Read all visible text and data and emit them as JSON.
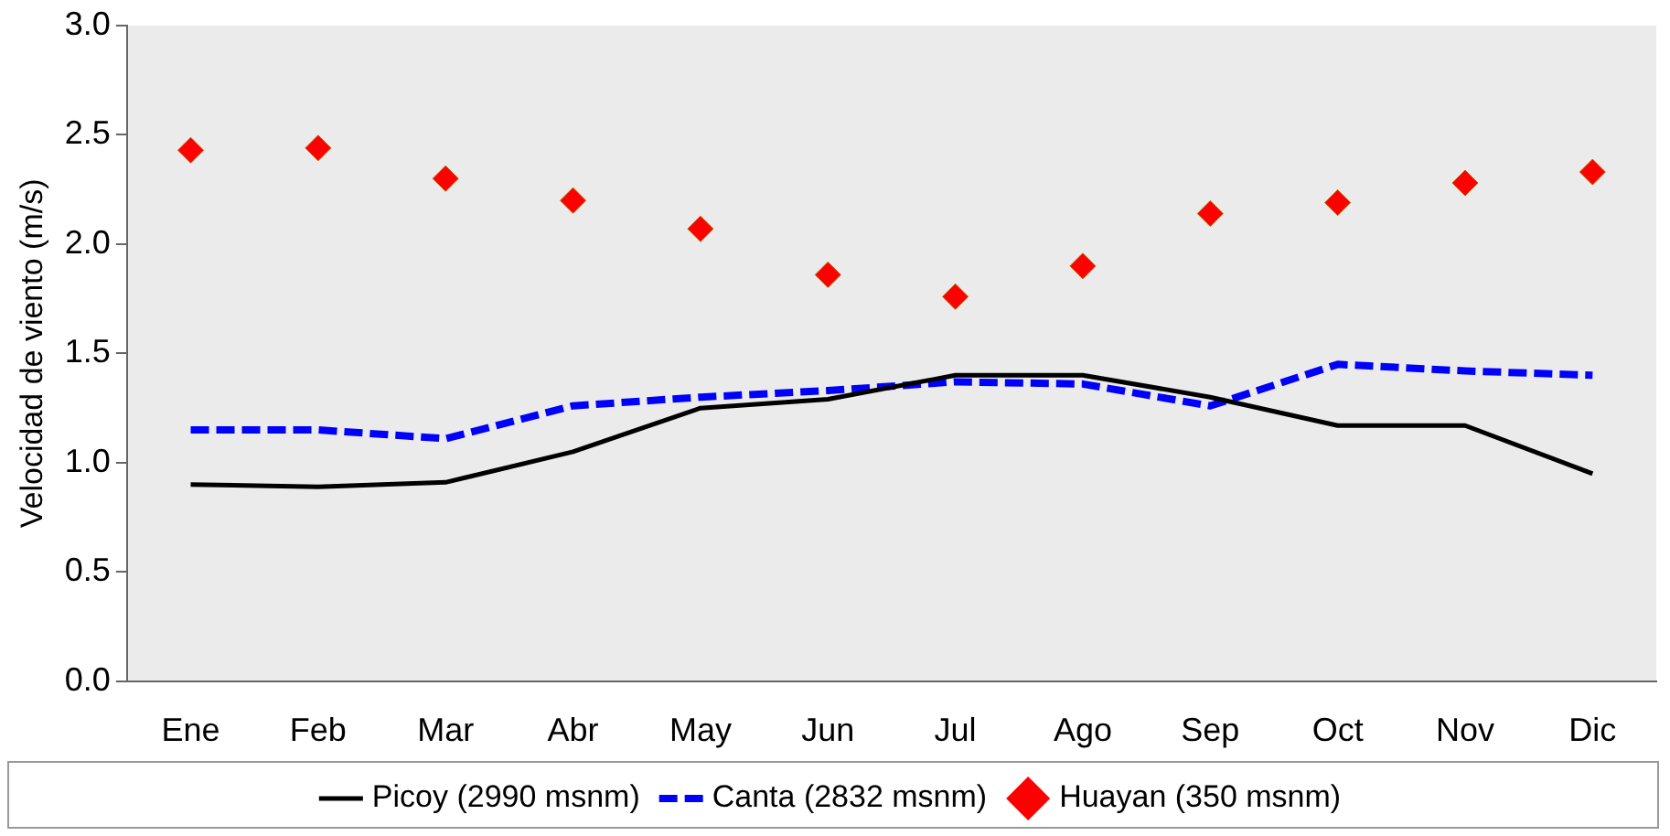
{
  "chart_data": {
    "type": "line",
    "ylabel": "Velocidad de viento (m/s)",
    "categories": [
      "Ene",
      "Feb",
      "Mar",
      "Abr",
      "May",
      "Jun",
      "Jul",
      "Ago",
      "Sep",
      "Oct",
      "Nov",
      "Dic"
    ],
    "series": [
      {
        "name": "Picoy (2990 msnm)",
        "color": "#000000",
        "line_style": "solid",
        "marker": "none",
        "values": [
          0.9,
          0.89,
          0.91,
          1.05,
          1.25,
          1.29,
          1.4,
          1.4,
          1.3,
          1.17,
          1.17,
          0.95
        ]
      },
      {
        "name": "Canta (2832 msnm)",
        "color": "#0000ff",
        "line_style": "dashed",
        "marker": "none",
        "values": [
          1.15,
          1.15,
          1.11,
          1.26,
          1.3,
          1.33,
          1.37,
          1.36,
          1.26,
          1.45,
          1.42,
          1.4
        ]
      },
      {
        "name": "Huayan (350 msnm)",
        "type": "scatter",
        "color": "#ff0000",
        "marker": "diamond",
        "values": [
          2.43,
          2.44,
          2.3,
          2.2,
          2.07,
          1.86,
          1.76,
          1.9,
          2.14,
          2.19,
          2.28,
          2.33
        ]
      }
    ],
    "ylim": [
      0,
      3
    ],
    "yticks": [
      {
        "value": 0,
        "label": "0.0"
      },
      {
        "value": 0.5,
        "label": "0.5"
      },
      {
        "value": 1,
        "label": "1.0"
      },
      {
        "value": 1.5,
        "label": "1.5"
      },
      {
        "value": 2,
        "label": "2.0"
      },
      {
        "value": 2.5,
        "label": "2.5"
      },
      {
        "value": 3,
        "label": "3.0"
      }
    ],
    "grid": false,
    "legend": "bottom"
  }
}
